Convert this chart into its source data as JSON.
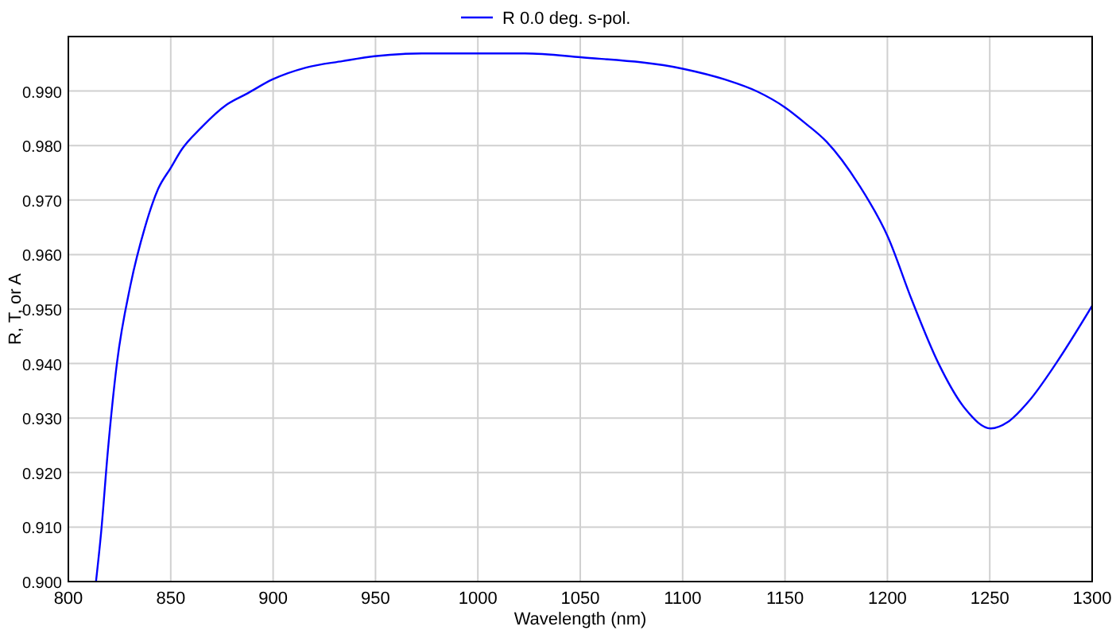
{
  "chart_data": {
    "type": "line",
    "xlabel": "Wavelength (nm)",
    "ylabel": "R, T, or A",
    "xlim": [
      800,
      1300
    ],
    "xticks": [
      800,
      850,
      900,
      950,
      1000,
      1050,
      1100,
      1150,
      1200,
      1250,
      1300
    ],
    "ylim": [
      0.9,
      1.0
    ],
    "yticks": [
      {
        "value": 0.9,
        "label": "0.900"
      },
      {
        "value": 0.91,
        "label": "0.910"
      },
      {
        "value": 0.92,
        "label": "0.920"
      },
      {
        "value": 0.93,
        "label": "0.930"
      },
      {
        "value": 0.94,
        "label": "0.940"
      },
      {
        "value": 0.95,
        "label": "0.950"
      },
      {
        "value": 0.96,
        "label": "0.960"
      },
      {
        "value": 0.97,
        "label": "0.970"
      },
      {
        "value": 0.98,
        "label": "0.980"
      },
      {
        "value": 0.99,
        "label": "0.990"
      }
    ],
    "grid": true,
    "legend": "top",
    "marker": "none",
    "line_style": "solid",
    "series": [
      {
        "name": "R 0.0 deg. s-pol.",
        "color": "#0000ff",
        "x": [
          813.5,
          816,
          819.3,
          823.7,
          830.4,
          837.4,
          843.8,
          850,
          855.4,
          864.4,
          877.3,
          887.6,
          899.5,
          916,
          934,
          949.5,
          972.7,
          999.7,
          1022.9,
          1050,
          1100,
          1120.8,
          1136.5,
          1150,
          1159.9,
          1170.3,
          1185.9,
          1200.3,
          1212,
          1225,
          1238,
          1250.5,
          1258.9,
          1269.3,
          1282.3,
          1300
        ],
        "values": [
          0.9,
          0.909,
          0.924,
          0.94,
          0.9545,
          0.965,
          0.972,
          0.9759,
          0.9793,
          0.9831,
          0.9875,
          0.9896,
          0.9921,
          0.9943,
          0.9955,
          0.9964,
          0.9969,
          0.9969,
          0.9969,
          0.9962,
          0.9941,
          0.9921,
          0.9899,
          0.987,
          0.9841,
          0.9807,
          0.9729,
          0.9632,
          0.9516,
          0.94,
          0.9317,
          0.9281,
          0.9293,
          0.9332,
          0.94,
          0.9506
        ]
      }
    ]
  }
}
